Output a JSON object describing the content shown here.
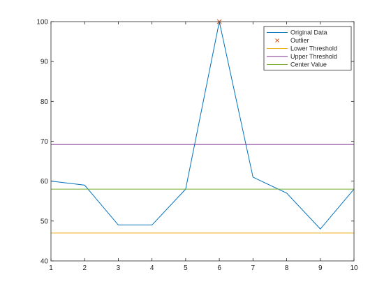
{
  "chart_data": {
    "type": "line",
    "title": "",
    "xlabel": "",
    "ylabel": "",
    "xlim": [
      1,
      10
    ],
    "ylim": [
      40,
      100
    ],
    "xticks": [
      1,
      2,
      3,
      4,
      5,
      6,
      7,
      8,
      9,
      10
    ],
    "yticks": [
      40,
      50,
      60,
      70,
      80,
      90,
      100
    ],
    "grid": false,
    "legend_position": "top-right",
    "series": [
      {
        "name": "Original Data",
        "kind": "line",
        "color": "#0072BD",
        "x": [
          1,
          2,
          3,
          4,
          5,
          6,
          7,
          8,
          9,
          10
        ],
        "y": [
          60,
          59,
          49,
          49,
          58,
          100,
          61,
          57,
          48,
          58
        ]
      },
      {
        "name": "Outlier",
        "kind": "marker",
        "marker": "x",
        "color": "#D95319",
        "x": [
          6
        ],
        "y": [
          100
        ]
      },
      {
        "name": "Lower Threshold",
        "kind": "hline",
        "color": "#EDB120",
        "y": 47
      },
      {
        "name": "Upper Threshold",
        "kind": "hline",
        "color": "#7E2F8E",
        "y": 69.2
      },
      {
        "name": "Center Value",
        "kind": "hline",
        "color": "#77AC30",
        "y": 58
      }
    ]
  }
}
